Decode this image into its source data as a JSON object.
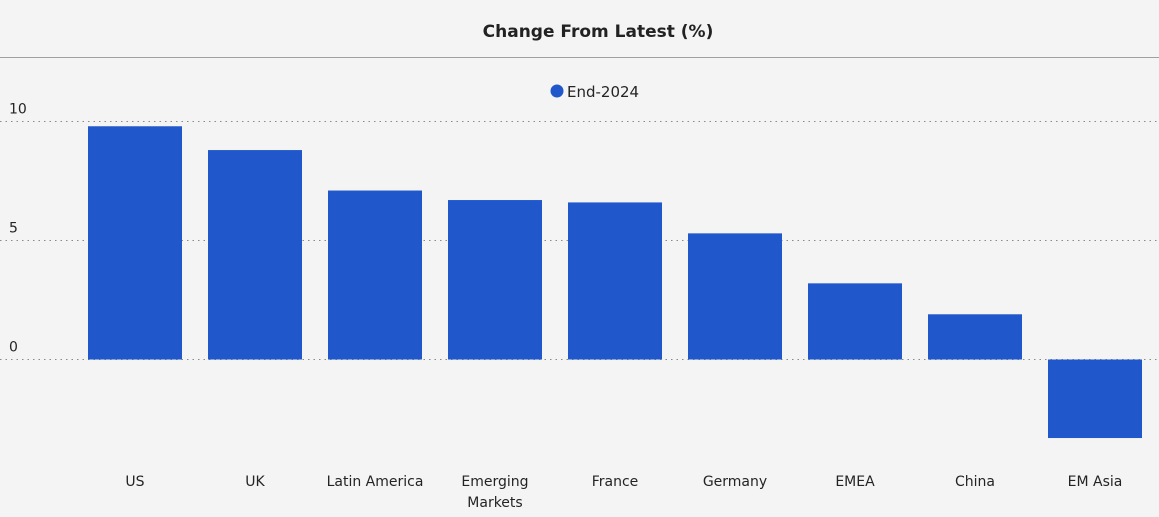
{
  "chart_data": {
    "type": "bar",
    "title": "Change From Latest (%)",
    "xlabel": "",
    "ylabel": "",
    "categories": [
      "US",
      "UK",
      "Latin America",
      "Emerging Markets",
      "France",
      "Germany",
      "EMEA",
      "China",
      "EM Asia"
    ],
    "series": [
      {
        "name": "End-2024",
        "values": [
          9.8,
          8.8,
          7.1,
          6.7,
          6.6,
          5.3,
          3.2,
          1.9,
          -3.3
        ],
        "color": "#2058cc"
      }
    ],
    "ylim": [
      -4.5,
      10.3
    ],
    "yticks": [
      0,
      5,
      10
    ],
    "grid": true,
    "legend_position": "top-center"
  }
}
